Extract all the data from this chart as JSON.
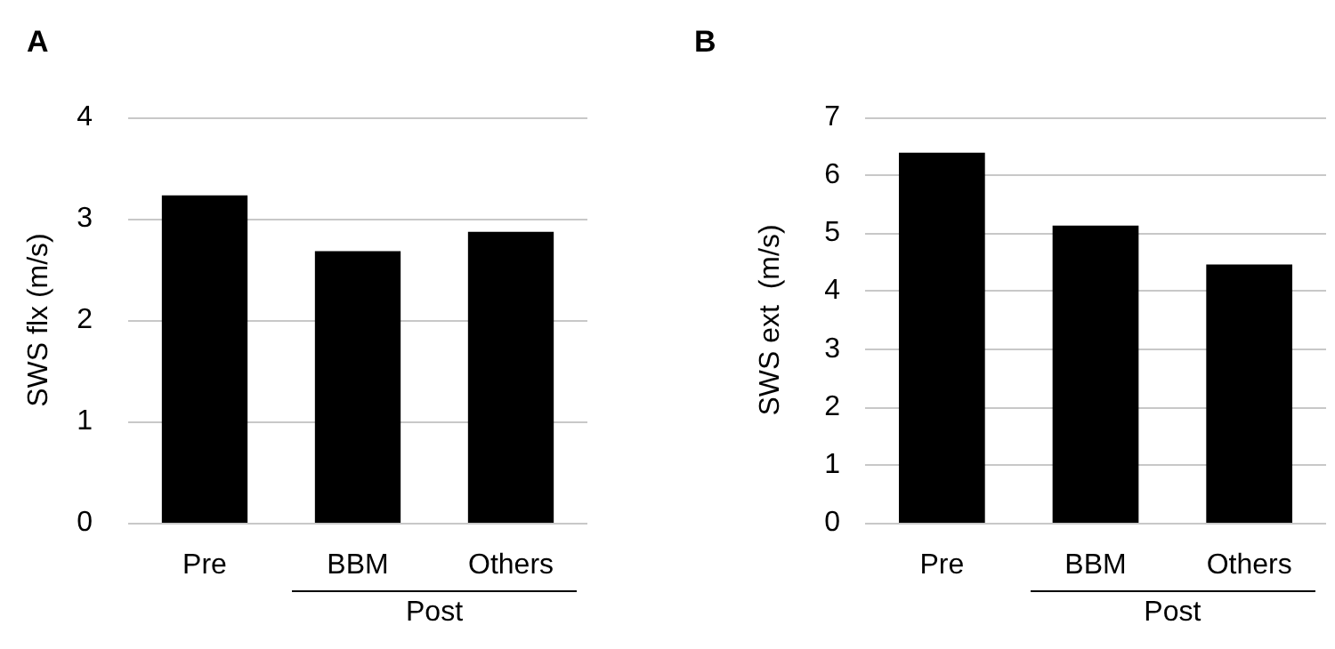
{
  "chart_data": [
    {
      "type": "bar",
      "title": "A",
      "ylabel": "SWS flx (m/s)",
      "categories": [
        "Pre",
        "BBM",
        "Others"
      ],
      "values": [
        3.23,
        2.68,
        2.87
      ],
      "color": "#000000",
      "ylim": [
        0,
        4
      ],
      "yticks": [
        0,
        1,
        2,
        3,
        4
      ],
      "grid": "y",
      "annotations": [
        "Post"
      ]
    },
    {
      "type": "bar",
      "title": "B",
      "ylabel": "SWS ext  (m/s)",
      "categories": [
        "Pre",
        "BBM",
        "Others"
      ],
      "values": [
        6.39,
        5.13,
        4.46
      ],
      "color": "#000000",
      "ylim": [
        0,
        7
      ],
      "yticks": [
        0,
        1,
        2,
        3,
        4,
        5,
        6,
        7
      ],
      "grid": "y",
      "annotations": [
        "Post"
      ]
    }
  ]
}
